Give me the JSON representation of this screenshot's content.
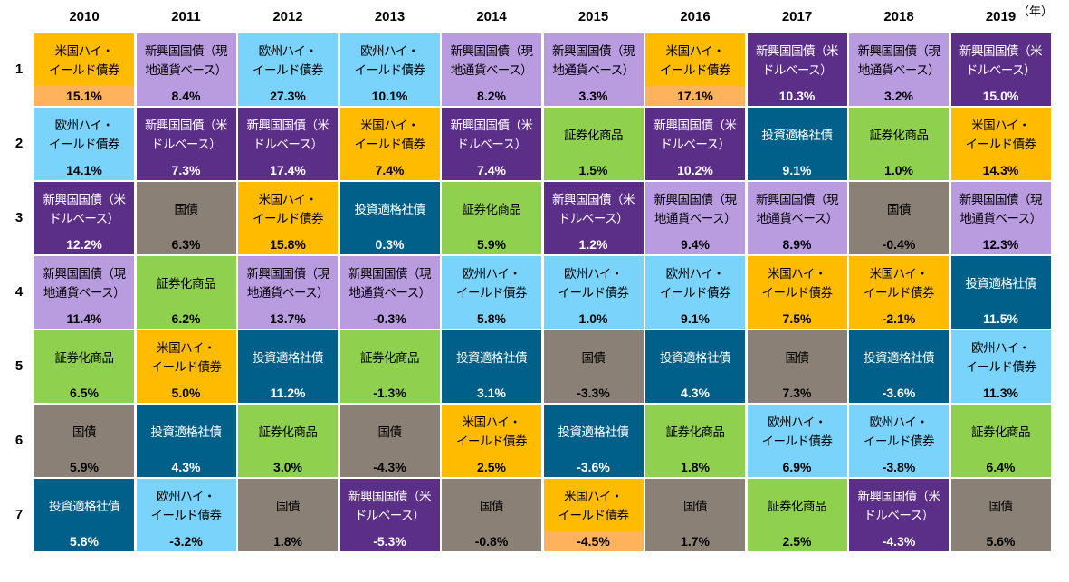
{
  "chart_data": {
    "type": "table",
    "unit_label": "（年）",
    "years": [
      "2010",
      "2011",
      "2012",
      "2013",
      "2014",
      "2015",
      "2016",
      "2017",
      "2018",
      "2019"
    ],
    "ranks": [
      "1",
      "2",
      "3",
      "4",
      "5",
      "6",
      "7"
    ],
    "assets": {
      "us_hy": {
        "label": "米国ハイ・\nイールド債券",
        "color": "#FFBB00",
        "text": "#000000",
        "value_band": "#FFB25C"
      },
      "eu_hy": {
        "label": "欧州ハイ・\nイールド債券",
        "color": "#7AD3FA",
        "text": "#000000"
      },
      "em_loc": {
        "label": "新興国国債（現\n地通貨ベース）",
        "color": "#B99BE0",
        "text": "#000000"
      },
      "em_usd": {
        "label": "新興国国債（米\nドルベース）",
        "color": "#5B2E88",
        "text": "#FFFFFF"
      },
      "sec": {
        "label": "証券化商品",
        "color": "#8FD14F",
        "text": "#000000"
      },
      "ig": {
        "label": "投資適格社債",
        "color": "#00608A",
        "text": "#FFFFFF"
      },
      "gov": {
        "label": "国債",
        "color": "#8A8075",
        "text": "#000000"
      }
    },
    "columns": [
      {
        "year": "2010",
        "cells": [
          {
            "asset": "us_hy",
            "value": "15.1%",
            "highlight": true
          },
          {
            "asset": "eu_hy",
            "value": "14.1%"
          },
          {
            "asset": "em_usd",
            "value": "12.2%"
          },
          {
            "asset": "em_loc",
            "value": "11.4%"
          },
          {
            "asset": "sec",
            "value": "6.5%"
          },
          {
            "asset": "gov",
            "value": "5.9%"
          },
          {
            "asset": "ig",
            "value": "5.8%"
          }
        ]
      },
      {
        "year": "2011",
        "cells": [
          {
            "asset": "em_loc",
            "value": "8.4%"
          },
          {
            "asset": "em_usd",
            "value": "7.3%"
          },
          {
            "asset": "gov",
            "value": "6.3%"
          },
          {
            "asset": "sec",
            "value": "6.2%"
          },
          {
            "asset": "us_hy",
            "value": "5.0%"
          },
          {
            "asset": "ig",
            "value": "4.3%"
          },
          {
            "asset": "eu_hy",
            "value": "-3.2%"
          }
        ]
      },
      {
        "year": "2012",
        "cells": [
          {
            "asset": "eu_hy",
            "value": "27.3%"
          },
          {
            "asset": "em_usd",
            "value": "17.4%"
          },
          {
            "asset": "us_hy",
            "value": "15.8%"
          },
          {
            "asset": "em_loc",
            "value": "13.7%"
          },
          {
            "asset": "ig",
            "value": "11.2%"
          },
          {
            "asset": "sec",
            "value": "3.0%"
          },
          {
            "asset": "gov",
            "value": "1.8%"
          }
        ]
      },
      {
        "year": "2013",
        "cells": [
          {
            "asset": "eu_hy",
            "value": "10.1%"
          },
          {
            "asset": "us_hy",
            "value": "7.4%"
          },
          {
            "asset": "ig",
            "value": "0.3%"
          },
          {
            "asset": "em_loc",
            "value": "-0.3%"
          },
          {
            "asset": "sec",
            "value": "-1.3%"
          },
          {
            "asset": "gov",
            "value": "-4.3%"
          },
          {
            "asset": "em_usd",
            "value": "-5.3%"
          }
        ]
      },
      {
        "year": "2014",
        "cells": [
          {
            "asset": "em_loc",
            "value": "8.2%"
          },
          {
            "asset": "em_usd",
            "value": "7.4%"
          },
          {
            "asset": "sec",
            "value": "5.9%"
          },
          {
            "asset": "eu_hy",
            "value": "5.8%"
          },
          {
            "asset": "ig",
            "value": "3.1%"
          },
          {
            "asset": "us_hy",
            "value": "2.5%"
          },
          {
            "asset": "gov",
            "value": "-0.8%"
          }
        ]
      },
      {
        "year": "2015",
        "cells": [
          {
            "asset": "em_loc",
            "value": "3.3%"
          },
          {
            "asset": "sec",
            "value": "1.5%"
          },
          {
            "asset": "em_usd",
            "value": "1.2%"
          },
          {
            "asset": "eu_hy",
            "value": "1.0%"
          },
          {
            "asset": "gov",
            "value": "-3.3%"
          },
          {
            "asset": "ig",
            "value": "-3.6%"
          },
          {
            "asset": "us_hy",
            "value": "-4.5%",
            "highlight": true
          }
        ]
      },
      {
        "year": "2016",
        "cells": [
          {
            "asset": "us_hy",
            "value": "17.1%",
            "highlight": true
          },
          {
            "asset": "em_usd",
            "value": "10.2%"
          },
          {
            "asset": "em_loc",
            "value": "9.4%"
          },
          {
            "asset": "eu_hy",
            "value": "9.1%"
          },
          {
            "asset": "ig",
            "value": "4.3%"
          },
          {
            "asset": "sec",
            "value": "1.8%"
          },
          {
            "asset": "gov",
            "value": "1.7%"
          }
        ]
      },
      {
        "year": "2017",
        "cells": [
          {
            "asset": "em_usd",
            "value": "10.3%"
          },
          {
            "asset": "ig",
            "value": "9.1%"
          },
          {
            "asset": "em_loc",
            "value": "8.9%"
          },
          {
            "asset": "us_hy",
            "value": "7.5%"
          },
          {
            "asset": "gov",
            "value": "7.3%"
          },
          {
            "asset": "eu_hy",
            "value": "6.9%"
          },
          {
            "asset": "sec",
            "value": "2.5%"
          }
        ]
      },
      {
        "year": "2018",
        "cells": [
          {
            "asset": "em_loc",
            "value": "3.2%"
          },
          {
            "asset": "sec",
            "value": "1.0%"
          },
          {
            "asset": "gov",
            "value": "-0.4%"
          },
          {
            "asset": "us_hy",
            "value": "-2.1%"
          },
          {
            "asset": "ig",
            "value": "-3.6%"
          },
          {
            "asset": "eu_hy",
            "value": "-3.8%"
          },
          {
            "asset": "em_usd",
            "value": "-4.3%"
          }
        ]
      },
      {
        "year": "2019",
        "cells": [
          {
            "asset": "em_usd",
            "value": "15.0%"
          },
          {
            "asset": "us_hy",
            "value": "14.3%"
          },
          {
            "asset": "em_loc",
            "value": "12.3%"
          },
          {
            "asset": "ig",
            "value": "11.5%"
          },
          {
            "asset": "eu_hy",
            "value": "11.3%"
          },
          {
            "asset": "sec",
            "value": "6.4%"
          },
          {
            "asset": "gov",
            "value": "5.6%"
          }
        ]
      }
    ]
  }
}
